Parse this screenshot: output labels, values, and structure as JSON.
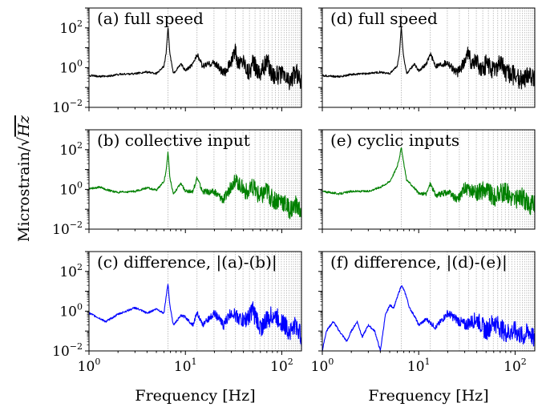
{
  "chart_data": {
    "type": "line",
    "ylabel": "Microstrain/√Hz",
    "ylabel_parts": {
      "text": "Microstrain/",
      "radical": "√",
      "radicand": "Hz"
    },
    "x_scale": "log",
    "y_scale": "log",
    "xlim": [
      1,
      160
    ],
    "ylim": [
      0.01,
      1000
    ],
    "x_ticks": [
      {
        "value": 1,
        "base": "10",
        "exp": "0"
      },
      {
        "value": 10,
        "base": "10",
        "exp": "1"
      },
      {
        "value": 100,
        "base": "10",
        "exp": "2"
      }
    ],
    "y_ticks": [
      {
        "value": 0.01,
        "base": "10",
        "exp": "−2"
      },
      {
        "value": 1,
        "base": "10",
        "exp": "0"
      },
      {
        "value": 100,
        "base": "10",
        "exp": "2"
      }
    ],
    "harmonic_fundamental_hz": 6.6,
    "grid": "vertical dotted lines at rotor harmonics",
    "layout": "3 rows x 2 columns, shared axes",
    "panels": [
      {
        "label": "(a) full speed",
        "xlabel": "",
        "color": "#000000",
        "series": [
          {
            "x": [
              1,
              1.5,
              2,
              3,
              4,
              5,
              6,
              6.3,
              6.6,
              6.9,
              7.5,
              9,
              10,
              12,
              13.2,
              15,
              20,
              25,
              30,
              33,
              35,
              40,
              45,
              50,
              60,
              70,
              80,
              100,
              120,
              140,
              160
            ],
            "y": [
              0.4,
              0.35,
              0.45,
              0.5,
              0.6,
              0.5,
              1.2,
              5,
              120,
              5,
              0.5,
              1.5,
              0.7,
              1.5,
              5,
              1.2,
              1.8,
              0.5,
              2,
              8,
              1.5,
              2.5,
              0.6,
              1.5,
              0.6,
              2,
              0.5,
              0.4,
              0.2,
              0.6,
              0.2
            ]
          }
        ]
      },
      {
        "label": "(b) collective input",
        "xlabel": "",
        "color": "#008000",
        "series": [
          {
            "x": [
              1,
              1.3,
              1.6,
              2,
              3,
              4,
              5,
              6,
              6.3,
              6.6,
              6.9,
              7.5,
              9,
              10,
              12,
              13.2,
              15,
              20,
              25,
              30,
              33,
              40,
              45,
              50,
              60,
              70,
              80,
              100,
              120,
              140,
              160
            ],
            "y": [
              1.1,
              1.3,
              0.9,
              0.7,
              0.8,
              1.2,
              0.9,
              2.5,
              8,
              80,
              4,
              0.6,
              2,
              0.8,
              0.8,
              4,
              0.8,
              0.7,
              0.3,
              1.5,
              3,
              1.1,
              0.6,
              1.2,
              0.4,
              0.9,
              0.3,
              0.3,
              0.1,
              0.15,
              0.08
            ]
          }
        ]
      },
      {
        "label": "(c) difference, |(a)-(b)|",
        "xlabel": "Frequency [Hz]",
        "color": "#0000ff",
        "series": [
          {
            "x": [
              1,
              1.5,
              2,
              3,
              4,
              5,
              6,
              6.3,
              6.6,
              6.9,
              7.5,
              9,
              10,
              12,
              13.2,
              15,
              20,
              25,
              30,
              40,
              50,
              60,
              80,
              100,
              120,
              140,
              160
            ],
            "y": [
              0.8,
              0.3,
              0.7,
              1.5,
              0.8,
              1.3,
              0.8,
              5,
              25,
              2,
              0.2,
              0.6,
              0.5,
              0.2,
              0.9,
              0.2,
              0.8,
              0.2,
              0.9,
              0.3,
              1,
              0.15,
              0.7,
              0.3,
              0.1,
              0.2,
              0.05
            ]
          }
        ]
      },
      {
        "label": "(d) full speed",
        "xlabel": "",
        "color": "#000000",
        "series": [
          {
            "x": [
              1,
              1.5,
              2,
              3,
              4,
              5,
              6,
              6.3,
              6.6,
              6.9,
              7.5,
              9,
              10,
              12,
              13.2,
              15,
              20,
              25,
              30,
              33,
              35,
              40,
              45,
              50,
              60,
              70,
              80,
              100,
              120,
              140,
              160
            ],
            "y": [
              0.4,
              0.35,
              0.45,
              0.5,
              0.6,
              0.5,
              1.2,
              5,
              120,
              5,
              0.5,
              1.5,
              0.7,
              1.5,
              5,
              1.2,
              1.8,
              0.5,
              2,
              8,
              1.5,
              2.5,
              0.6,
              1.5,
              0.6,
              2,
              0.5,
              0.4,
              0.2,
              0.6,
              0.2
            ]
          }
        ]
      },
      {
        "label": "(e) cyclic inputs",
        "xlabel": "",
        "color": "#008000",
        "series": [
          {
            "x": [
              1,
              1.5,
              2,
              3,
              4,
              5,
              5.5,
              6,
              6.3,
              6.6,
              6.9,
              7.5,
              9,
              10,
              12,
              13.2,
              15,
              20,
              25,
              30,
              40,
              50,
              60,
              80,
              100,
              120,
              140,
              160
            ],
            "y": [
              0.8,
              0.6,
              0.8,
              0.8,
              1.3,
              2.5,
              6,
              15,
              40,
              130,
              30,
              3,
              1.2,
              0.6,
              0.6,
              2,
              0.5,
              0.7,
              0.3,
              1.2,
              0.6,
              1.1,
              0.4,
              0.8,
              0.3,
              0.4,
              0.15,
              0.2
            ]
          }
        ]
      },
      {
        "label": "(f) difference, |(d)-(e)|",
        "xlabel": "Frequency [Hz]",
        "color": "#0000ff",
        "series": [
          {
            "x": [
              1,
              1.1,
              1.3,
              1.5,
              1.8,
              2,
              2.3,
              2.6,
              3,
              3.5,
              4,
              4.5,
              5,
              5.5,
              6,
              6.6,
              7,
              7.5,
              8,
              9,
              10,
              12,
              15,
              20,
              30,
              40,
              50,
              60,
              80,
              100,
              120,
              140,
              160
            ],
            "y": [
              0.01,
              0.1,
              0.3,
              0.1,
              0.03,
              0.1,
              0.3,
              0.05,
              0.2,
              0.1,
              0.01,
              0.6,
              2,
              1.5,
              5,
              20,
              12,
              5,
              1.5,
              0.6,
              0.2,
              0.4,
              0.15,
              0.8,
              0.2,
              0.4,
              0.1,
              0.3,
              0.08,
              0.1,
              0.05,
              0.1,
              0.03
            ]
          }
        ]
      }
    ]
  }
}
